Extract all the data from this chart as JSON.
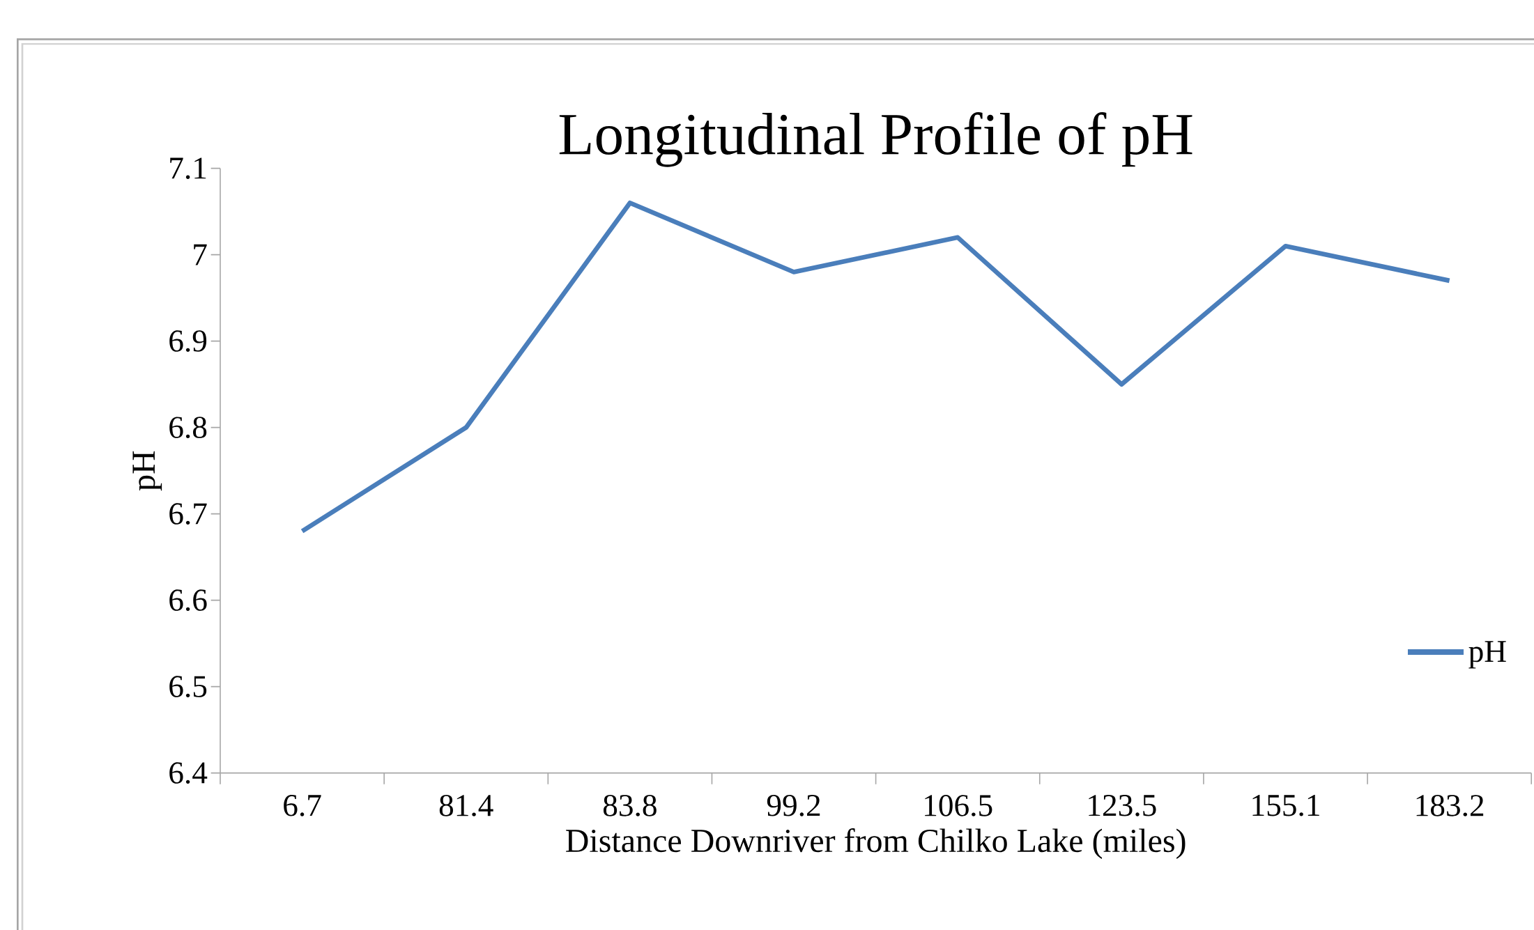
{
  "chart_data": {
    "type": "line",
    "title": "Longitudinal Profile of pH",
    "xlabel": "Distance Downriver from Chilko Lake (miles)",
    "ylabel": "pH",
    "categories": [
      "6.7",
      "81.4",
      "83.8",
      "99.2",
      "106.5",
      "123.5",
      "155.1",
      "183.2"
    ],
    "series": [
      {
        "name": "pH",
        "color": "#4a7ebb",
        "values": [
          6.68,
          6.8,
          7.06,
          6.98,
          7.02,
          6.85,
          7.01,
          6.97
        ]
      }
    ],
    "ylim": [
      6.4,
      7.1
    ],
    "yticks": [
      6.4,
      6.5,
      6.6,
      6.7,
      6.8,
      6.9,
      7,
      7.1
    ],
    "grid": false,
    "legend": "right",
    "marker": "none",
    "line_style": "solid"
  }
}
